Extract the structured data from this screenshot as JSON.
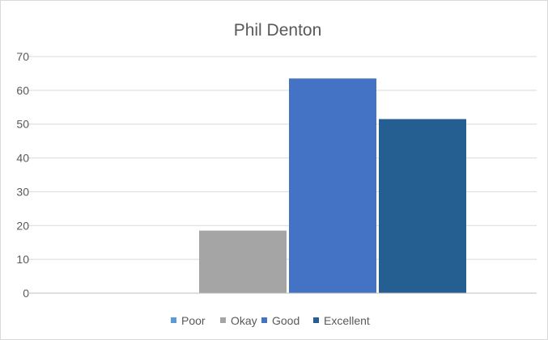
{
  "chart_data": {
    "type": "bar",
    "title": "Phil Denton",
    "xlabel": "",
    "ylabel": "",
    "ylim": [
      0,
      70
    ],
    "yticks": [
      0,
      10,
      20,
      30,
      40,
      50,
      60,
      70
    ],
    "grid": true,
    "legend_position": "bottom",
    "series": [
      {
        "name": "Poor",
        "value": 0,
        "color": "#5b9bd5"
      },
      {
        "name": "Okay",
        "value": 18.5,
        "color": "#a5a5a5"
      },
      {
        "name": "Good",
        "value": 63.5,
        "color": "#4472c4"
      },
      {
        "name": "Excellent",
        "value": 51.5,
        "color": "#255e91"
      }
    ]
  }
}
